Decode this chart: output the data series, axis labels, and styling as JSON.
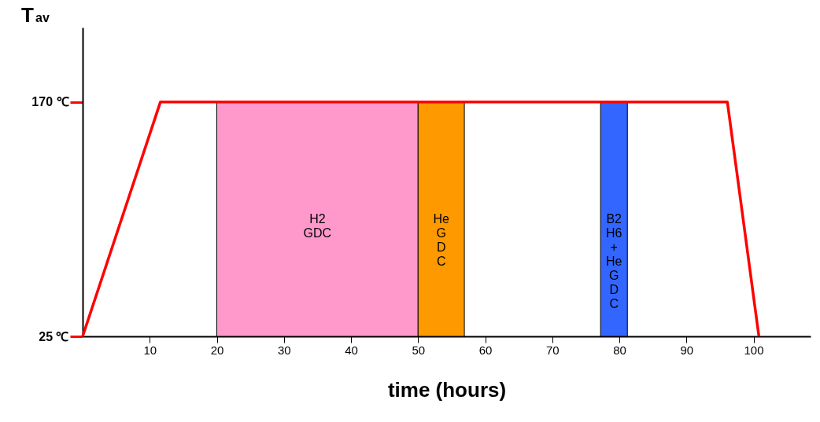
{
  "chart_data": {
    "type": "line",
    "xlabel": "time (hours)",
    "ylabel": "T$_{av}$",
    "x": [
      0,
      11.6,
      96.1,
      100.8
    ],
    "series": [
      {
        "color": "#ff0000",
        "values": [
          25,
          170,
          170,
          25
        ]
      }
    ],
    "xlim": [
      0,
      108.5
    ],
    "ylim": [
      25,
      216
    ],
    "xticks": [
      10,
      20,
      30,
      40,
      50,
      60,
      70,
      80,
      90,
      100
    ],
    "yticks": [
      {
        "value": 25,
        "label": "25 ℃"
      },
      {
        "value": 170,
        "label": "170 ℃"
      }
    ],
    "bands": [
      {
        "axis": "x",
        "from": 20,
        "to": 50,
        "label": "H2\nGDC",
        "color": "#ff99cc"
      },
      {
        "axis": "x",
        "from": 50,
        "to": 56.9,
        "label": "He\n\nG\nD\nC",
        "color": "#ff9900"
      },
      {
        "axis": "x",
        "from": 77.2,
        "to": 81.2,
        "label": "B2\nH6\n\n+\n\nHe\nG\nD\nC",
        "color": "#3366ff"
      }
    ],
    "grid": false,
    "marker": "none",
    "line_style": "solid"
  }
}
